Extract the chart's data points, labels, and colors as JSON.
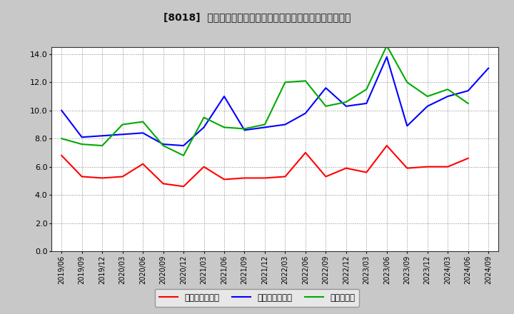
{
  "title": "[8018]  売上債権回転率、買入債務回転率、在庫回転率の推移",
  "dates": [
    "2019/06",
    "2019/09",
    "2019/12",
    "2020/03",
    "2020/06",
    "2020/09",
    "2020/12",
    "2021/03",
    "2021/06",
    "2021/09",
    "2021/12",
    "2022/03",
    "2022/06",
    "2022/09",
    "2022/12",
    "2023/03",
    "2023/06",
    "2023/09",
    "2023/12",
    "2024/03",
    "2024/06",
    "2024/09"
  ],
  "売上債権回転率": [
    6.8,
    5.3,
    5.2,
    5.3,
    6.2,
    4.8,
    4.6,
    6.0,
    5.1,
    5.2,
    5.2,
    5.3,
    7.0,
    5.3,
    5.9,
    5.6,
    7.5,
    5.9,
    6.0,
    6.0,
    6.6,
    null
  ],
  "買入債務回転率": [
    10.0,
    8.1,
    8.2,
    8.3,
    8.4,
    7.6,
    7.5,
    8.8,
    11.0,
    8.6,
    8.8,
    9.0,
    9.8,
    11.6,
    10.3,
    10.5,
    13.8,
    8.9,
    10.3,
    11.0,
    11.4,
    13.0
  ],
  "在庫回転率": [
    8.0,
    7.6,
    7.5,
    9.0,
    9.2,
    7.5,
    6.8,
    9.5,
    8.8,
    8.7,
    9.0,
    12.0,
    12.1,
    10.3,
    10.6,
    11.5,
    14.6,
    12.0,
    11.0,
    11.5,
    10.5,
    null
  ],
  "line_colors": {
    "売上債権回転率": "#ff0000",
    "買入債務回転率": "#0000ff",
    "在庫回転率": "#00aa00"
  },
  "ylim": [
    0.0,
    14.5
  ],
  "yticks": [
    0.0,
    2.0,
    4.0,
    6.0,
    8.0,
    10.0,
    12.0,
    14.0
  ],
  "bg_color": "#c8c8c8",
  "plot_bg_color": "#ffffff",
  "grid_color": "#888888",
  "legend_labels": [
    "売上債権回転率",
    "買入債務回転率",
    "在庫回転率"
  ]
}
